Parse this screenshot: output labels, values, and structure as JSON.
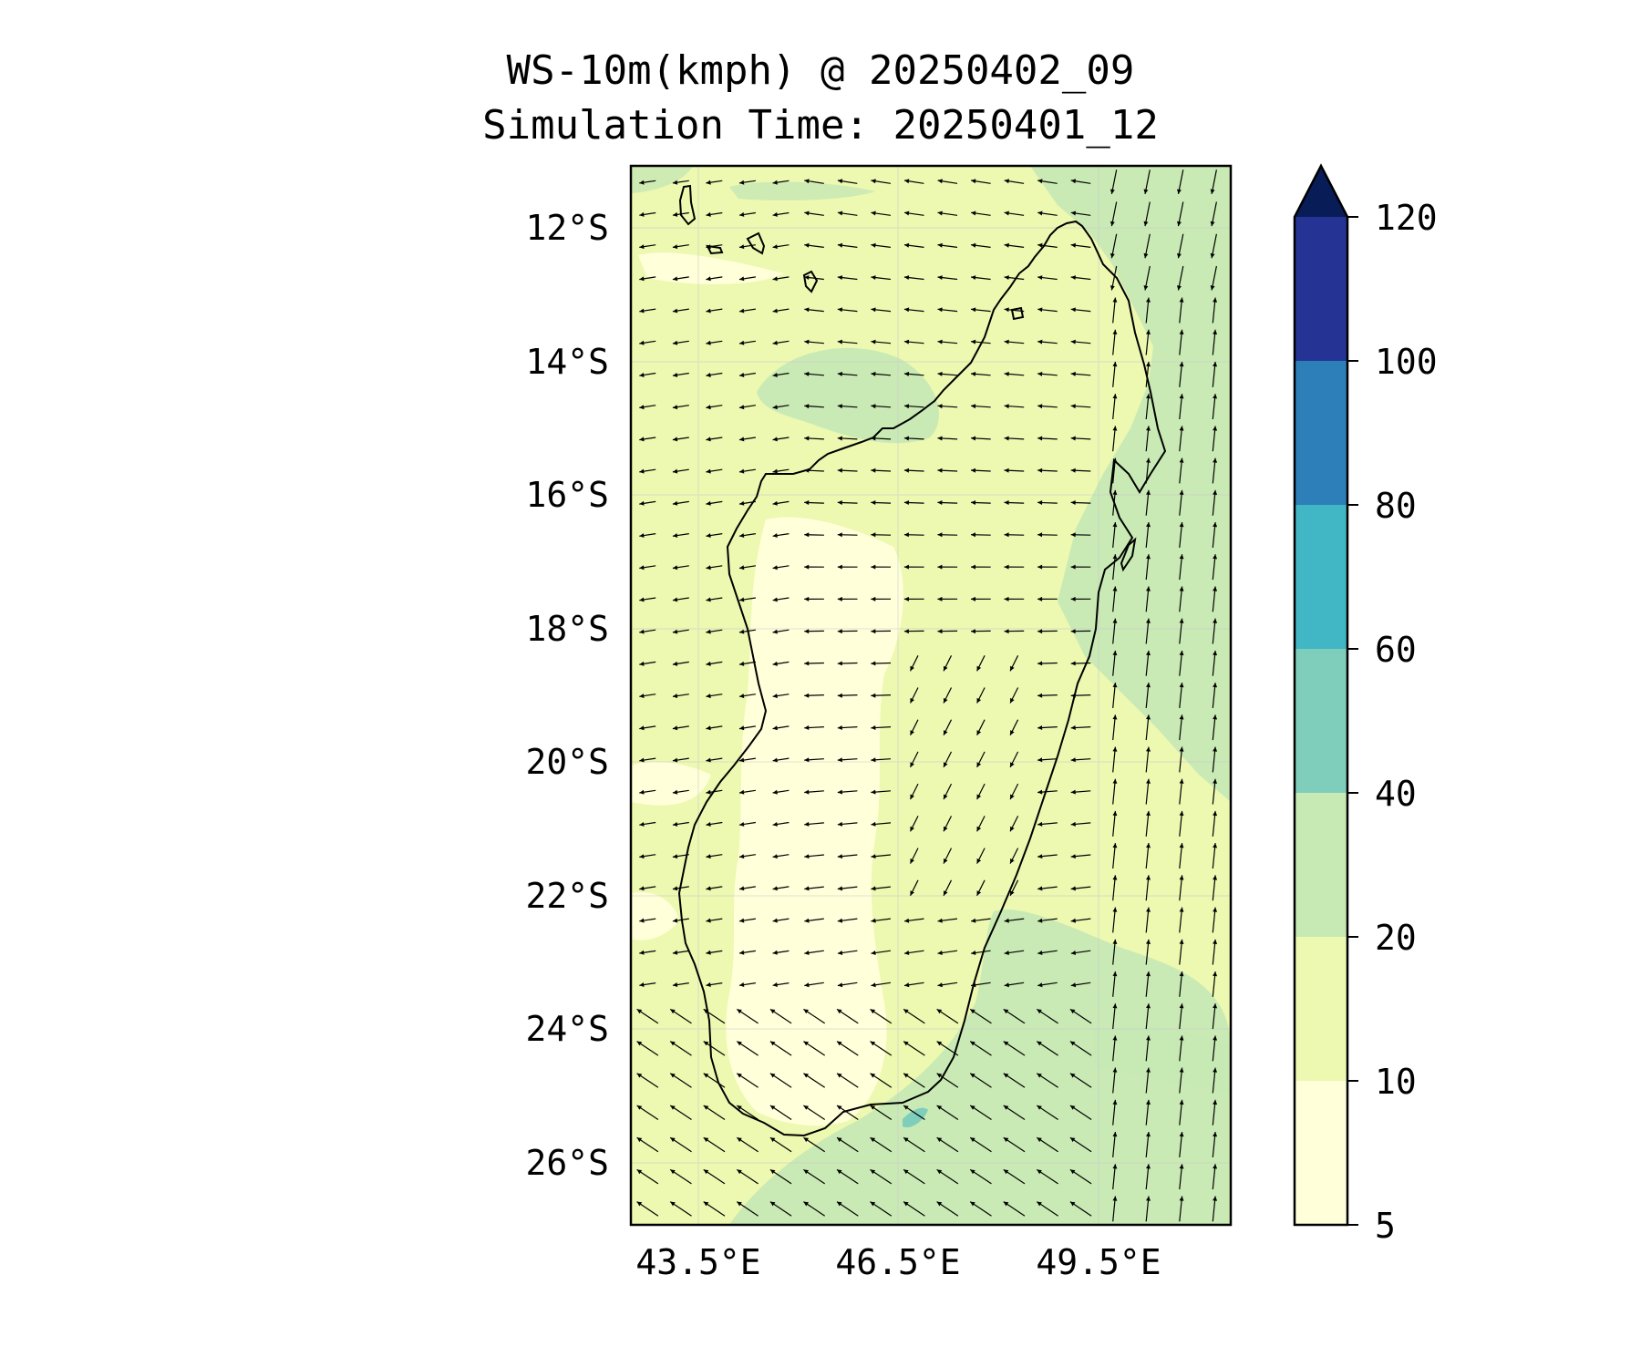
{
  "title": {
    "line1": "WS-10m(kmph) @ 20250402_09",
    "line2": "Simulation Time: 20250401_12"
  },
  "map": {
    "lat_ticks": [
      "12°S",
      "14°S",
      "16°S",
      "18°S",
      "20°S",
      "22°S",
      "24°S",
      "26°S"
    ],
    "lon_ticks": [
      "43.5°E",
      "46.5°E",
      "49.5°E"
    ]
  },
  "colorbar": {
    "labels": [
      "5",
      "10",
      "20",
      "40",
      "60",
      "80",
      "100",
      "120"
    ],
    "colors": [
      "#ffffd9",
      "#edf8b1",
      "#c7e9b4",
      "#7fcdbb",
      "#41b6c4",
      "#2c7fb8",
      "#253494",
      "#081d58"
    ]
  },
  "colors": {
    "ocean_base": "#edf8b1",
    "strong_wind": "#c7e9b4",
    "calm": "#ffffd9",
    "teal_spot": "#7fcdbb",
    "coast": "#000000",
    "grid": "#cccccc"
  }
}
